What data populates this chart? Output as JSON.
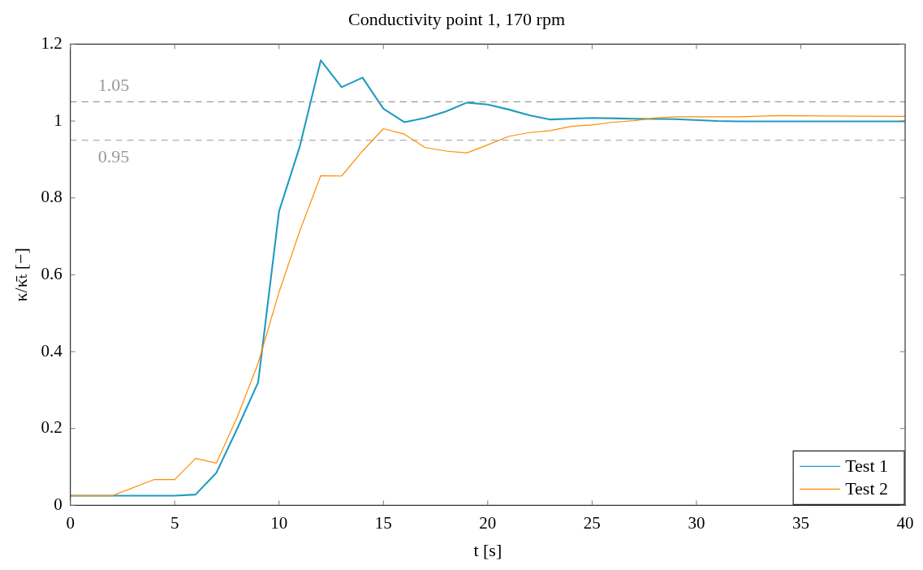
{
  "chart_data": {
    "type": "line",
    "title": "Conductivity point 1, 170 rpm",
    "xlabel": "t [s]",
    "ylabel": "κ/κ̄ₜ [−]",
    "xlim": [
      0,
      40
    ],
    "xticks": [
      0,
      5,
      10,
      15,
      20,
      25,
      30,
      35,
      40
    ],
    "ylim": [
      0,
      1.2
    ],
    "yticks": [
      0,
      0.2,
      0.4,
      0.6,
      0.8,
      1,
      1.2
    ],
    "grid": false,
    "legend": "bottom right",
    "marker": "none",
    "line_style": "solid",
    "ref_lines": [
      {
        "axis": "y",
        "value": 1.05,
        "label": "1.05",
        "color": "#999999",
        "line_style": "dashed"
      },
      {
        "axis": "y",
        "value": 0.95,
        "label": "0.95",
        "color": "#999999",
        "line_style": "dashed"
      }
    ],
    "series": [
      {
        "name": "Test 1",
        "color": "#1f9bc0",
        "x": [
          0,
          1,
          2,
          3,
          4,
          5,
          6,
          7,
          8,
          9,
          10,
          11,
          12,
          13,
          14,
          15,
          16,
          17,
          18,
          19,
          20,
          21,
          22,
          23,
          25,
          27,
          29,
          31,
          32,
          35,
          40
        ],
        "values": [
          0.025,
          0.025,
          0.025,
          0.025,
          0.025,
          0.025,
          0.028,
          0.085,
          0.2,
          0.32,
          0.765,
          0.935,
          1.158,
          1.088,
          1.113,
          1.032,
          0.997,
          1.008,
          1.025,
          1.048,
          1.043,
          1.03,
          1.015,
          1.004,
          1.008,
          1.006,
          1.005,
          1.0,
          0.999,
          0.999,
          0.999
        ]
      },
      {
        "name": "Test 2",
        "color": "#ff8c00",
        "x": [
          0,
          2,
          4,
          5,
          6,
          7,
          8,
          9,
          10,
          11,
          12,
          13,
          14,
          15,
          16,
          17,
          18,
          19,
          20,
          21,
          22,
          23,
          24,
          25,
          26,
          27,
          28,
          29,
          32,
          34,
          40
        ],
        "values": [
          0.025,
          0.025,
          0.067,
          0.067,
          0.122,
          0.11,
          0.23,
          0.37,
          0.555,
          0.715,
          0.858,
          0.857,
          0.922,
          0.98,
          0.966,
          0.931,
          0.922,
          0.917,
          0.938,
          0.96,
          0.97,
          0.975,
          0.986,
          0.99,
          0.997,
          1.001,
          1.008,
          1.011,
          1.011,
          1.014,
          1.012
        ]
      }
    ]
  }
}
